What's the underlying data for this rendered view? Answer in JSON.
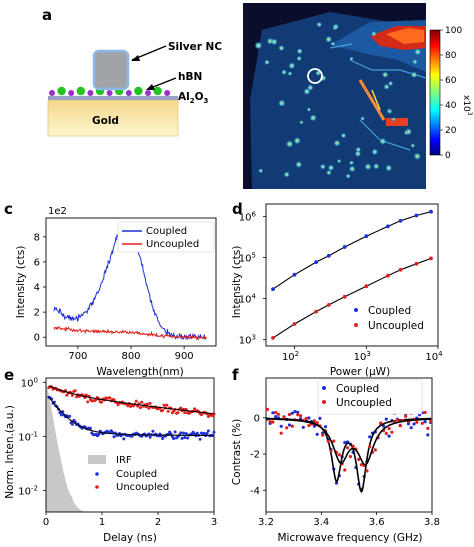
{
  "panel_labels": {
    "a": "a",
    "b": "b",
    "c": "c",
    "d": "d",
    "e": "e",
    "f": "f"
  },
  "schematic": {
    "silver_nc_label": "Silver NC",
    "hbn_label": "hBN",
    "al2o3_main": "Al",
    "al2o3_sub2": "2",
    "al2o3_o": "O",
    "al2o3_sub3": "3",
    "gold_label": "Gold",
    "colors": {
      "nc": "#a0a4a8",
      "nc_border": "#8cb8e6",
      "gold_top": "#f4d88a",
      "gold_bottom": "#fff6d0",
      "dot_purple": "#9c2fc9",
      "dot_green": "#22c41e"
    }
  },
  "chart_data": [
    {
      "panel": "b",
      "type": "heatmap",
      "colorbar": {
        "ticks": [
          0,
          20,
          40,
          60,
          80,
          100
        ],
        "exponent_label": "x10",
        "exponent": "3",
        "colormap": "jet"
      }
    },
    {
      "panel": "c",
      "type": "line",
      "xlabel": "Wavelength(nm)",
      "ylabel": "Intensity (cts)",
      "scale_label": "1e2",
      "xlim": [
        640,
        960
      ],
      "ylim": [
        -0.7,
        9.5
      ],
      "xticks": [
        700,
        800,
        900
      ],
      "yticks": [
        0,
        2,
        4,
        6,
        8
      ],
      "legend": {
        "placement": "top-right"
      },
      "series": [
        {
          "name": "Coupled",
          "color": "#1f2fd6",
          "x": [
            655,
            670,
            685,
            700,
            715,
            730,
            745,
            755,
            765,
            772,
            780,
            787,
            795,
            803,
            810,
            818,
            826,
            835,
            845,
            855,
            865,
            875,
            885,
            895,
            910,
            925,
            940
          ],
          "y": [
            2.3,
            1.9,
            1.5,
            1.5,
            2.0,
            2.9,
            4.3,
            5.6,
            6.8,
            7.8,
            8.4,
            8.8,
            8.6,
            8.2,
            7.4,
            6.2,
            4.8,
            3.2,
            1.9,
            1.0,
            0.45,
            0.2,
            0.1,
            0.05,
            0.02,
            0.0,
            0.0
          ]
        },
        {
          "name": "Uncoupled",
          "color": "#e0201c",
          "x": [
            655,
            680,
            700,
            720,
            740,
            760,
            780,
            800,
            820,
            840,
            860,
            880,
            900,
            920,
            940
          ],
          "y": [
            0.75,
            0.65,
            0.55,
            0.5,
            0.45,
            0.42,
            0.4,
            0.35,
            0.3,
            0.2,
            0.12,
            0.06,
            0.02,
            0.0,
            -0.05
          ]
        }
      ]
    },
    {
      "panel": "d",
      "type": "scatter",
      "xlabel": "Power (",
      "xlabel_unit": "μW",
      "xlabel_close": ")",
      "ylabel": "Intensity (cts)",
      "xscale": "log",
      "yscale": "log",
      "xlim": [
        40,
        10000
      ],
      "ylim": [
        700,
        2000000
      ],
      "xticks": [
        {
          "value": 100,
          "base": "10",
          "exp": "2"
        },
        {
          "value": 1000,
          "base": "10",
          "exp": "3"
        },
        {
          "value": 10000,
          "base": "10",
          "exp": "4"
        }
      ],
      "yticks": [
        {
          "value": 1000,
          "base": "10",
          "exp": "3"
        },
        {
          "value": 10000,
          "base": "10",
          "exp": "4"
        },
        {
          "value": 100000,
          "base": "10",
          "exp": "5"
        },
        {
          "value": 1000000,
          "base": "10",
          "exp": "6"
        }
      ],
      "legend": {
        "placement": "bottom-right"
      },
      "series": [
        {
          "name": "Coupled",
          "color": "#1f2fd6",
          "x": [
            50,
            100,
            200,
            300,
            500,
            1000,
            2000,
            3000,
            5000,
            8000
          ],
          "y": [
            17000,
            38000,
            77000,
            110000,
            180000,
            330000,
            570000,
            780000,
            1050000,
            1300000
          ]
        },
        {
          "name": "Uncoupled",
          "color": "#e0201c",
          "x": [
            50,
            100,
            200,
            300,
            500,
            1000,
            2000,
            3000,
            5000,
            8000
          ],
          "y": [
            1100,
            2400,
            4800,
            7000,
            11000,
            20000,
            36000,
            50000,
            70000,
            95000
          ]
        }
      ]
    },
    {
      "panel": "e",
      "type": "scatter",
      "xlabel": "Delay (ns)",
      "ylabel": "Norm. Inten.(a.u.)",
      "yscale": "log",
      "xlim": [
        0,
        3
      ],
      "ylim": [
        0.004,
        1.2
      ],
      "xticks": [
        0,
        1,
        2,
        3
      ],
      "yticks": [
        {
          "value": 1,
          "base": "10",
          "exp": "0"
        },
        {
          "value": 0.1,
          "base": "10",
          "exp": "-1"
        },
        {
          "value": 0.01,
          "base": "10",
          "exp": "-2"
        }
      ],
      "legend": {
        "placement": "bottom-center"
      },
      "irf": {
        "name": "IRF",
        "color": "#c8c8c8",
        "x": [
          0,
          0.05,
          0.1,
          0.15,
          0.2,
          0.25,
          0.3,
          0.35,
          0.4,
          0.45,
          0.5,
          0.55,
          0.6,
          0.65,
          0.7,
          0.75,
          0.8
        ],
        "y": [
          1,
          0.6,
          0.32,
          0.16,
          0.08,
          0.045,
          0.025,
          0.015,
          0.01,
          0.008,
          0.006,
          0.005,
          0.0045,
          0.0042,
          0.004,
          0.004,
          0.004
        ]
      },
      "series": [
        {
          "name": "Coupled",
          "color": "#1f2fd6",
          "tau_fast": 0.25,
          "a_fast": 0.52,
          "tau_slow": 50,
          "a_slow": 0.11,
          "t_start": 0.05,
          "t_end": 3.0,
          "n": 120,
          "seed": 3
        },
        {
          "name": "Uncoupled",
          "color": "#e0201c",
          "tau_fast": 0.4,
          "a_fast": 0.3,
          "tau_slow": 3.6,
          "a_slow": 0.6,
          "t_start": 0.05,
          "t_end": 3.0,
          "n": 120,
          "seed": 7
        }
      ]
    },
    {
      "panel": "f",
      "type": "scatter",
      "xlabel": "Microwave frequency (GHz)",
      "ylabel": "Contrast (%)",
      "xlim": [
        3.2,
        3.8
      ],
      "ylim": [
        -5.2,
        2.2
      ],
      "xticks": [
        3.2,
        3.4,
        3.6,
        3.8
      ],
      "yticks": [
        0,
        -2,
        -4
      ],
      "legend": {
        "placement": "top-right"
      },
      "series": [
        {
          "name": "Coupled",
          "color": "#1f2fd6",
          "fit": [
            {
              "f0": 3.455,
              "w": 0.022,
              "a": 3.3
            },
            {
              "f0": 3.545,
              "w": 0.022,
              "a": 3.9
            }
          ],
          "noise": 0.75,
          "seed": 11
        },
        {
          "name": "Uncoupled",
          "color": "#e0201c",
          "fit": [
            {
              "f0": 3.47,
              "w": 0.035,
              "a": 2.2
            },
            {
              "f0": 3.56,
              "w": 0.035,
              "a": 2.3
            }
          ],
          "noise": 0.7,
          "seed": 19
        }
      ]
    }
  ]
}
